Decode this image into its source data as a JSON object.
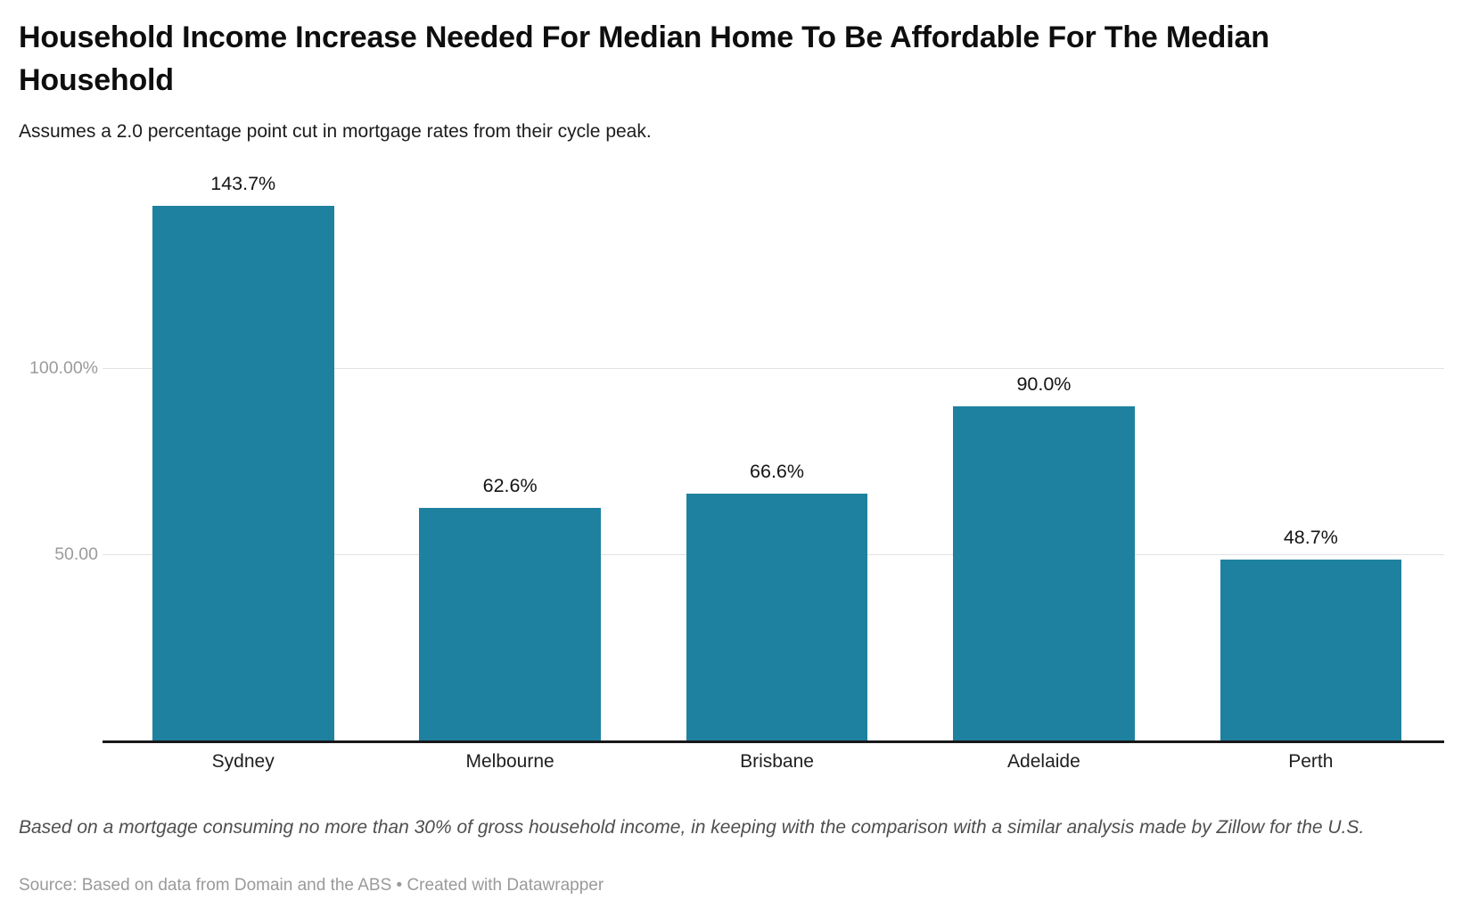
{
  "header": {
    "title": "Household Income Increase Needed For Median Home To Be Affordable For The Median Household",
    "subtitle": "Assumes a 2.0 percentage point cut in mortgage rates from their cycle peak."
  },
  "chart_data": {
    "type": "bar",
    "categories": [
      "Sydney",
      "Melbourne",
      "Brisbane",
      "Adelaide",
      "Perth"
    ],
    "values": [
      143.7,
      62.6,
      66.6,
      90.0,
      48.7
    ],
    "value_labels": [
      "143.7%",
      "62.6%",
      "66.6%",
      "90.0%",
      "48.7%"
    ],
    "title": "Household Income Increase Needed For Median Home To Be Affordable For The Median Household",
    "xlabel": "",
    "ylabel": "",
    "ylim": [
      0,
      145
    ],
    "yticks": [
      {
        "value": 50,
        "label": "50.00"
      },
      {
        "value": 100,
        "label": "100.00%"
      }
    ],
    "grid": "horizontal-only",
    "legend": "none",
    "bar_color": "#1f81a0",
    "axis_line_color": "#18181b",
    "gridline_color": "#e2e2e2"
  },
  "footer": {
    "note": "Based on a mortgage consuming no more than 30% of gross household income, in keeping with the comparison with a similar analysis made by Zillow for the U.S.",
    "source": "Source: Based on data from Domain and the ABS • Created with Datawrapper"
  }
}
